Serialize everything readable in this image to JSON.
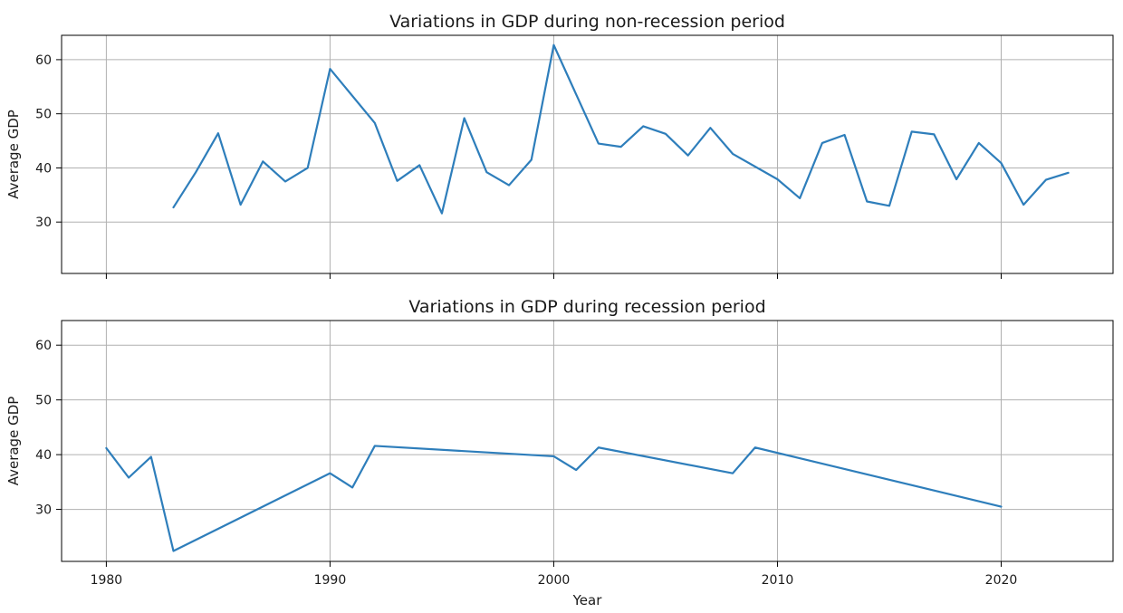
{
  "chart_data": [
    {
      "type": "line",
      "title": "Variations in GDP during non-recession period",
      "xlabel": "",
      "ylabel": "Average GDP",
      "xlim": [
        1978,
        2025
      ],
      "ylim": [
        20.5,
        64.5
      ],
      "xticks": [
        1980,
        1990,
        2000,
        2010,
        2020
      ],
      "show_xticklabels": false,
      "yticks": [
        30,
        40,
        50,
        60
      ],
      "grid": true,
      "color": "#2e7ebb",
      "x": [
        1983,
        1984,
        1985,
        1986,
        1987,
        1988,
        1989,
        1990,
        1992,
        1993,
        1994,
        1995,
        1996,
        1997,
        1998,
        1999,
        2000,
        2002,
        2003,
        2004,
        2005,
        2006,
        2007,
        2008,
        2010,
        2011,
        2012,
        2013,
        2014,
        2015,
        2016,
        2017,
        2018,
        2019,
        2020,
        2021,
        2022,
        2023
      ],
      "y": [
        32.7,
        39.2,
        46.4,
        33.2,
        41.2,
        37.5,
        40.0,
        58.3,
        48.3,
        37.6,
        40.5,
        31.6,
        49.2,
        39.2,
        36.8,
        41.5,
        62.7,
        44.5,
        43.9,
        47.7,
        46.3,
        42.3,
        47.4,
        42.6,
        37.9,
        34.4,
        44.6,
        46.1,
        33.8,
        33.0,
        46.7,
        46.2,
        37.9,
        44.6,
        40.9,
        33.2,
        37.8,
        39.1
      ]
    },
    {
      "type": "line",
      "title": "Variations in GDP during recession period",
      "xlabel": "Year",
      "ylabel": "Average GDP",
      "xlim": [
        1978,
        2025
      ],
      "ylim": [
        20.5,
        64.5
      ],
      "xticks": [
        1980,
        1990,
        2000,
        2010,
        2020
      ],
      "show_xticklabels": true,
      "yticks": [
        30,
        40,
        50,
        60
      ],
      "grid": true,
      "color": "#2e7ebb",
      "x": [
        1980,
        1981,
        1982,
        1983,
        1990,
        1991,
        1992,
        2000,
        2001,
        2002,
        2008,
        2009,
        2020
      ],
      "y": [
        41.2,
        35.8,
        39.6,
        22.4,
        36.6,
        34.0,
        41.6,
        39.7,
        37.2,
        41.3,
        36.6,
        41.3,
        30.5
      ]
    }
  ]
}
